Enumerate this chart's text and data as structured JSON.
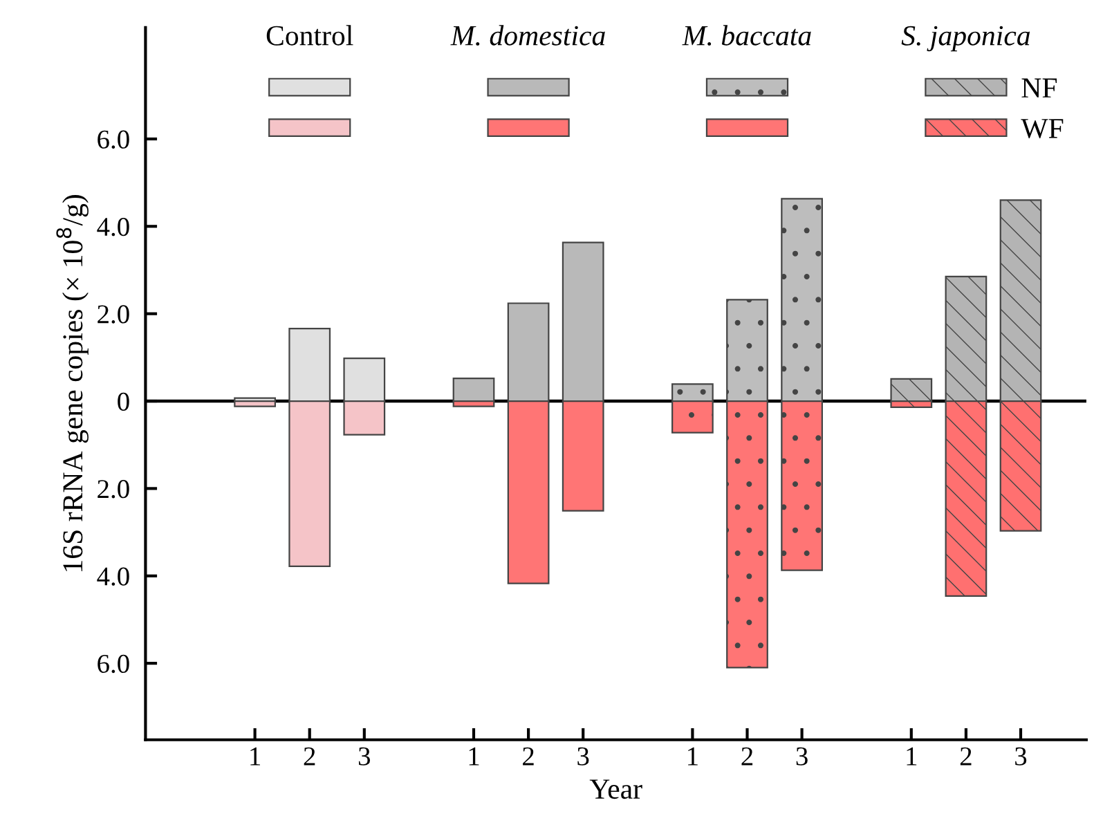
{
  "chart_data": {
    "type": "bar",
    "xlabel": "Year",
    "ylabel": "16S rRNA gene copies (× 10$^{8}$/g)",
    "categories": [
      "1",
      "2",
      "3",
      null,
      "1",
      "2",
      "3",
      null,
      "1",
      "2",
      "3",
      null,
      "1",
      "2",
      "3"
    ],
    "series": [
      {
        "name": "NF",
        "values": [
          0.07,
          1.66,
          0.98,
          null,
          0.52,
          2.24,
          3.63,
          null,
          0.39,
          2.32,
          4.63,
          null,
          0.51,
          2.85,
          4.6
        ],
        "colors": [
          "#e0e0e0",
          "#e0e0e0",
          "#e0e0e0",
          null,
          "#b9b9b9",
          "#b9b9b9",
          "#b9b9b9",
          null,
          "#bdbdbd",
          "#bdbdbd",
          "#bdbdbd",
          null,
          "#b4b4b4",
          "#b4b4b4",
          "#b4b4b4"
        ]
      },
      {
        "name": "WF",
        "values": [
          -0.12,
          -3.78,
          -0.77,
          null,
          -0.12,
          -4.17,
          -2.51,
          null,
          -0.72,
          -6.1,
          -3.87,
          null,
          -0.14,
          -4.46,
          -2.97
        ],
        "colors": [
          "#f5c4c8",
          "#f5c4c8",
          "#f5c4c8",
          null,
          "#ff7575",
          "#ff7575",
          "#ff7575",
          null,
          "#ff7575",
          "#ff7575",
          "#ff7575",
          null,
          "#ff7070",
          "#ff7070",
          "#ff7070"
        ]
      }
    ],
    "annotations": [
      "Control",
      "M. domestica",
      "M. baccata",
      "S. japonica"
    ],
    "ylim": [
      -7.75,
      8.55
    ],
    "yticks": [
      {
        "value": -6,
        "label": "6.0"
      },
      {
        "value": -4,
        "label": "4.0"
      },
      {
        "value": -2,
        "label": "2.0"
      },
      0,
      {
        "value": 2,
        "label": "2.0"
      },
      {
        "value": 4,
        "label": "4.0"
      },
      {
        "value": 6,
        "label": "6.0"
      }
    ],
    "stacked": true,
    "ref_lines": [
      {
        "axis": "y",
        "value": 0
      }
    ],
    "legend": "top"
  }
}
